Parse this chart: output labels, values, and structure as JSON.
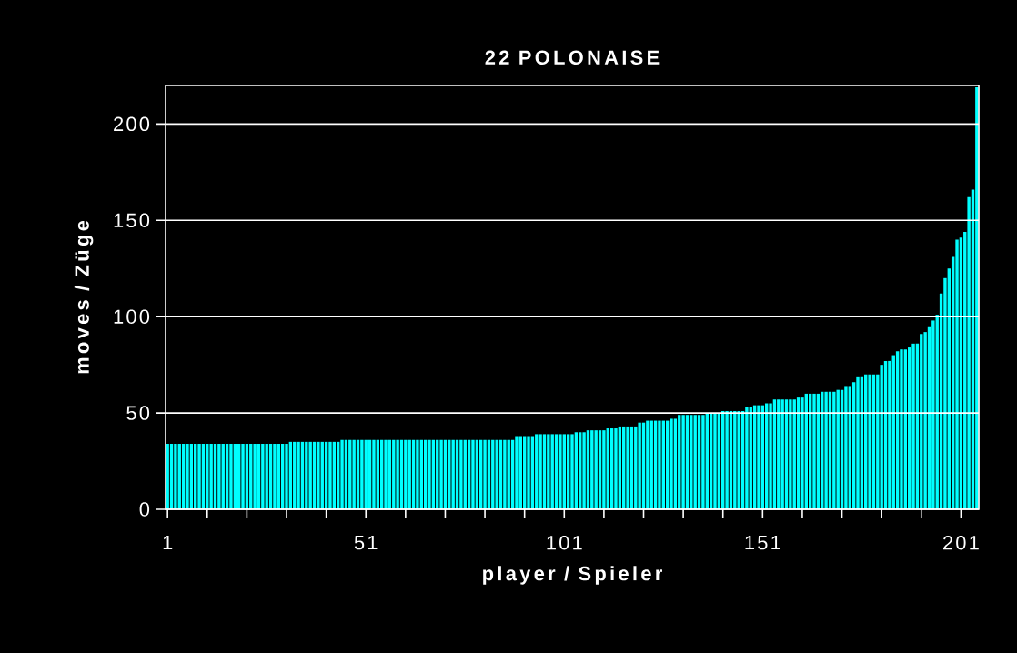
{
  "chart_data": {
    "type": "bar",
    "title": "22 POLONAISE",
    "xlabel": "player / Spieler",
    "ylabel": "moves / Züge",
    "categories": [
      "1",
      null,
      null,
      null,
      null,
      null,
      null,
      null,
      null,
      null,
      null,
      null,
      null,
      null,
      null,
      null,
      null,
      null,
      null,
      null,
      null,
      null,
      null,
      null,
      null,
      null,
      null,
      null,
      null,
      null,
      null,
      null,
      null,
      null,
      null,
      null,
      null,
      null,
      null,
      null,
      null,
      null,
      null,
      null,
      null,
      null,
      null,
      null,
      null,
      null,
      "51",
      null,
      null,
      null,
      null,
      null,
      null,
      null,
      null,
      null,
      null,
      null,
      null,
      null,
      null,
      null,
      null,
      null,
      null,
      null,
      null,
      null,
      null,
      null,
      null,
      null,
      null,
      null,
      null,
      null,
      null,
      null,
      null,
      null,
      null,
      null,
      null,
      null,
      null,
      null,
      null,
      null,
      null,
      null,
      null,
      null,
      null,
      null,
      null,
      null,
      "101",
      null,
      null,
      null,
      null,
      null,
      null,
      null,
      null,
      null,
      null,
      null,
      null,
      null,
      null,
      null,
      null,
      null,
      null,
      null,
      null,
      null,
      null,
      null,
      null,
      null,
      null,
      null,
      null,
      null,
      null,
      null,
      null,
      null,
      null,
      null,
      null,
      null,
      null,
      null,
      null,
      null,
      null,
      null,
      null,
      null,
      null,
      null,
      null,
      null,
      "151",
      null,
      null,
      null,
      null,
      null,
      null,
      null,
      null,
      null,
      null,
      null,
      null,
      null,
      null,
      null,
      null,
      null,
      null,
      null,
      null,
      null,
      null,
      null,
      null,
      null,
      null,
      null,
      null,
      null,
      null,
      null,
      null,
      null,
      null,
      null,
      null,
      null,
      null,
      null,
      null,
      null,
      null,
      null,
      null,
      null,
      null,
      null,
      null,
      null,
      "201",
      null,
      null,
      null,
      null
    ],
    "values": [
      34,
      34,
      34,
      34,
      34,
      34,
      34,
      34,
      34,
      34,
      34,
      34,
      34,
      34,
      34,
      34,
      34,
      34,
      34,
      34,
      34,
      34,
      34,
      34,
      34,
      34,
      34,
      34,
      34,
      34,
      34,
      35,
      35,
      35,
      35,
      35,
      35,
      35,
      35,
      35,
      35,
      35,
      35,
      35,
      36,
      36,
      36,
      36,
      36,
      36,
      36,
      36,
      36,
      36,
      36,
      36,
      36,
      36,
      36,
      36,
      36,
      36,
      36,
      36,
      36,
      36,
      36,
      36,
      36,
      36,
      36,
      36,
      36,
      36,
      36,
      36,
      36,
      36,
      36,
      36,
      36,
      36,
      36,
      36,
      36,
      36,
      36,
      36,
      38,
      38,
      38,
      38,
      38,
      39,
      39,
      39,
      39,
      39,
      39,
      39,
      39,
      39,
      39,
      40,
      40,
      40,
      41,
      41,
      41,
      41,
      41,
      42,
      42,
      42,
      43,
      43,
      43,
      43,
      43,
      45,
      45,
      46,
      46,
      46,
      46,
      46,
      46,
      47,
      47,
      49,
      49,
      49,
      49,
      49,
      49,
      49,
      50,
      50,
      50,
      50,
      51,
      51,
      51,
      51,
      51,
      51,
      53,
      53,
      54,
      54,
      54,
      55,
      55,
      57,
      57,
      57,
      57,
      57,
      57,
      58,
      58,
      60,
      60,
      60,
      60,
      61,
      61,
      61,
      61,
      62,
      62,
      64,
      64,
      66,
      69,
      69,
      70,
      70,
      70,
      70,
      75,
      77,
      77,
      80,
      82,
      83,
      83,
      84,
      86,
      86,
      91,
      92,
      95,
      98,
      101,
      112,
      120,
      125,
      131,
      140,
      141,
      144,
      162,
      166,
      219
    ],
    "color": "#00ffff",
    "ylim": [
      0,
      220
    ],
    "yticks": [
      0,
      50,
      100,
      150,
      200
    ],
    "grid": "y"
  }
}
